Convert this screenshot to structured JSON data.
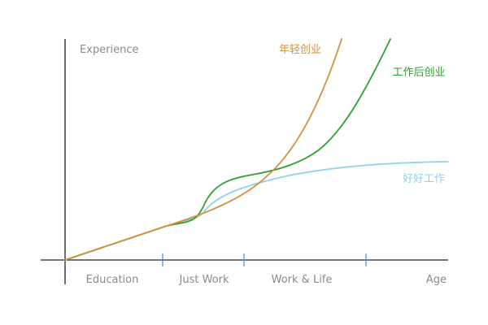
{
  "chart_data": {
    "type": "line",
    "title": "",
    "ylabel": "Experience",
    "xlabel": "Age",
    "stages": [
      "Education",
      "Just Work",
      "Work & Life"
    ],
    "series": [
      {
        "name": "年轻创业",
        "color": "#d4913c"
      },
      {
        "name": "工作后创业",
        "color": "#2ea12e"
      },
      {
        "name": "好好工作",
        "color": "#8fd3ea"
      }
    ]
  }
}
